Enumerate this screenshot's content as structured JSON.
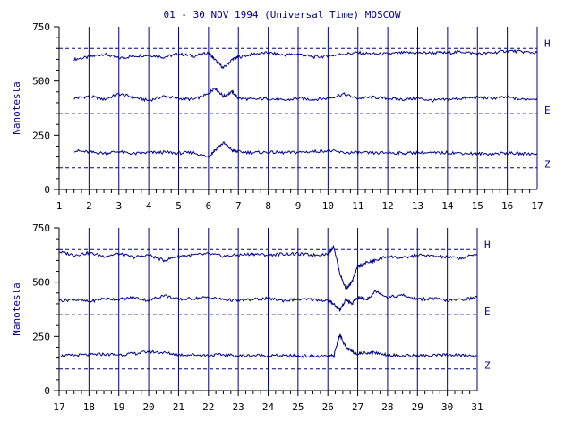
{
  "chart_data": {
    "type": "line",
    "title": "01 - 30 NOV 1994 (Universal Time) MOSCOW",
    "colors": {
      "trace": "#00008b",
      "text": "#00008b",
      "axis": "#000000",
      "baseline": "#00008b"
    },
    "panels": [
      {
        "id": "panel-1",
        "ylabel": "Nanotesla",
        "xlim": [
          1,
          17
        ],
        "ylim": [
          0,
          750
        ],
        "yticks": [
          0,
          250,
          500,
          750
        ],
        "xticks": [
          1,
          2,
          3,
          4,
          5,
          6,
          7,
          8,
          9,
          10,
          11,
          12,
          13,
          14,
          15,
          16,
          17
        ],
        "baselines": [
          {
            "component": "H",
            "value": 650
          },
          {
            "component": "E",
            "value": 350
          },
          {
            "component": "Z",
            "value": 100
          }
        ],
        "series": [
          {
            "name": "H",
            "x": [
              1.5,
              2,
              2.5,
              3,
              3.5,
              4,
              4.5,
              5,
              5.5,
              6,
              6.2,
              6.5,
              6.8,
              7,
              7.5,
              8,
              8.5,
              9,
              9.5,
              10,
              10.5,
              11,
              11.5,
              12,
              12.5,
              13,
              13.5,
              14,
              14.5,
              15,
              15.5,
              16,
              16.5,
              17
            ],
            "y": [
              600,
              610,
              625,
              605,
              615,
              620,
              610,
              625,
              615,
              630,
              600,
              560,
              600,
              610,
              625,
              630,
              620,
              625,
              610,
              615,
              625,
              630,
              625,
              625,
              630,
              630,
              630,
              630,
              635,
              625,
              630,
              640,
              635,
              630
            ]
          },
          {
            "name": "E",
            "x": [
              1.5,
              2,
              2.5,
              3,
              3.5,
              4,
              4.5,
              5,
              5.5,
              6,
              6.2,
              6.5,
              6.8,
              7,
              7.5,
              8,
              8.5,
              9,
              9.5,
              10,
              10.5,
              11,
              11.5,
              12,
              12.5,
              13,
              13.5,
              14,
              14.5,
              15,
              15.5,
              16,
              16.5,
              17
            ],
            "y": [
              420,
              430,
              415,
              440,
              425,
              410,
              430,
              420,
              415,
              440,
              470,
              430,
              450,
              420,
              415,
              420,
              410,
              420,
              415,
              420,
              440,
              420,
              425,
              420,
              415,
              420,
              410,
              415,
              420,
              425,
              420,
              425,
              415,
              420
            ]
          },
          {
            "name": "Z",
            "x": [
              1.5,
              2,
              2.5,
              3,
              3.5,
              4,
              4.5,
              5,
              5.5,
              6,
              6.2,
              6.5,
              6.8,
              7,
              7.5,
              8,
              8.5,
              9,
              9.5,
              10,
              10.5,
              11,
              11.5,
              12,
              12.5,
              13,
              13.5,
              14,
              14.5,
              15,
              15.5,
              16,
              16.5,
              17
            ],
            "y": [
              180,
              172,
              168,
              175,
              165,
              170,
              172,
              168,
              170,
              150,
              180,
              215,
              180,
              175,
              170,
              172,
              170,
              172,
              175,
              180,
              170,
              170,
              168,
              170,
              168,
              170,
              168,
              170,
              168,
              165,
              165,
              168,
              165,
              165
            ]
          }
        ],
        "side_labels": [
          "H",
          "E",
          "Z"
        ]
      },
      {
        "id": "panel-2",
        "ylabel": "Nanotesla",
        "xlim": [
          17,
          31
        ],
        "ylim": [
          0,
          750
        ],
        "yticks": [
          0,
          250,
          500,
          750
        ],
        "xticks": [
          17,
          18,
          19,
          20,
          21,
          22,
          23,
          24,
          25,
          26,
          27,
          28,
          29,
          30,
          31
        ],
        "baselines": [
          {
            "component": "H",
            "value": 650
          },
          {
            "component": "E",
            "value": 350
          },
          {
            "component": "Z",
            "value": 100
          }
        ],
        "series": [
          {
            "name": "H",
            "x": [
              17,
              17.5,
              18,
              18.5,
              19,
              19.5,
              20,
              20.5,
              21,
              21.5,
              22,
              22.5,
              23,
              23.5,
              24,
              24.5,
              25,
              25.5,
              26,
              26.2,
              26.4,
              26.6,
              26.8,
              27,
              27.3,
              27.6,
              28,
              28.5,
              29,
              29.5,
              30,
              30.5,
              31
            ],
            "y": [
              640,
              625,
              635,
              620,
              630,
              615,
              625,
              600,
              620,
              625,
              630,
              620,
              625,
              630,
              625,
              630,
              630,
              625,
              630,
              665,
              540,
              470,
              500,
              570,
              590,
              600,
              620,
              610,
              625,
              620,
              615,
              610,
              630
            ]
          },
          {
            "name": "E",
            "x": [
              17,
              17.5,
              18,
              18.5,
              19,
              19.5,
              20,
              20.5,
              21,
              21.5,
              22,
              22.5,
              23,
              23.5,
              24,
              24.5,
              25,
              25.5,
              26,
              26.2,
              26.4,
              26.6,
              26.8,
              27,
              27.3,
              27.6,
              28,
              28.5,
              29,
              29.5,
              30,
              30.5,
              31
            ],
            "y": [
              415,
              420,
              410,
              425,
              420,
              430,
              415,
              440,
              420,
              425,
              430,
              420,
              415,
              420,
              425,
              415,
              420,
              420,
              415,
              400,
              370,
              420,
              400,
              430,
              420,
              460,
              430,
              440,
              420,
              425,
              415,
              420,
              430
            ]
          },
          {
            "name": "Z",
            "x": [
              17,
              17.5,
              18,
              18.5,
              19,
              19.5,
              20,
              20.5,
              21,
              21.5,
              22,
              22.5,
              23,
              23.5,
              24,
              24.5,
              25,
              25.5,
              26,
              26.2,
              26.4,
              26.6,
              26.8,
              27,
              27.3,
              27.6,
              28,
              28.5,
              29,
              29.5,
              30,
              30.5,
              31
            ],
            "y": [
              160,
              162,
              165,
              168,
              165,
              170,
              180,
              175,
              165,
              165,
              162,
              165,
              160,
              162,
              162,
              160,
              160,
              158,
              158,
              160,
              260,
              200,
              180,
              170,
              175,
              175,
              165,
              160,
              162,
              160,
              165,
              162,
              160
            ]
          }
        ],
        "side_labels": [
          "H",
          "E",
          "Z"
        ]
      }
    ]
  }
}
